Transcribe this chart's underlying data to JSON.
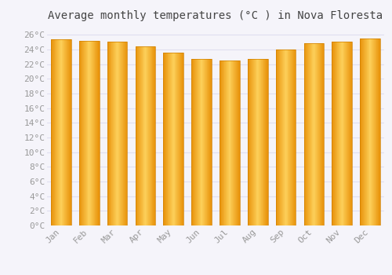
{
  "title": "Average monthly temperatures (°C ) in Nova Floresta",
  "categories": [
    "Jan",
    "Feb",
    "Mar",
    "Apr",
    "May",
    "Jun",
    "Jul",
    "Aug",
    "Sep",
    "Oct",
    "Nov",
    "Dec"
  ],
  "values": [
    25.4,
    25.2,
    25.1,
    24.4,
    23.6,
    22.7,
    22.5,
    22.7,
    24.0,
    24.9,
    25.1,
    25.5
  ],
  "bar_color_center": "#FDD05A",
  "bar_color_edge": "#E8920A",
  "background_color": "#F5F4FA",
  "plot_bg_color": "#F5F4FA",
  "grid_color": "#E0DFF0",
  "ylim": [
    0,
    27
  ],
  "ytick_step": 2,
  "title_fontsize": 10,
  "tick_fontsize": 8,
  "tick_font_color": "#999999",
  "title_font_color": "#444444"
}
